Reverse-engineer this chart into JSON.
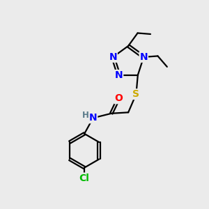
{
  "bg_color": "#ebebeb",
  "atom_colors": {
    "N": "#0000ff",
    "S": "#ccaa00",
    "O": "#ff0000",
    "Cl": "#00bb00",
    "H": "#5a7a8a",
    "C": "#000000"
  },
  "font_size": 10,
  "fig_size": [
    3.0,
    3.0
  ],
  "dpi": 100
}
